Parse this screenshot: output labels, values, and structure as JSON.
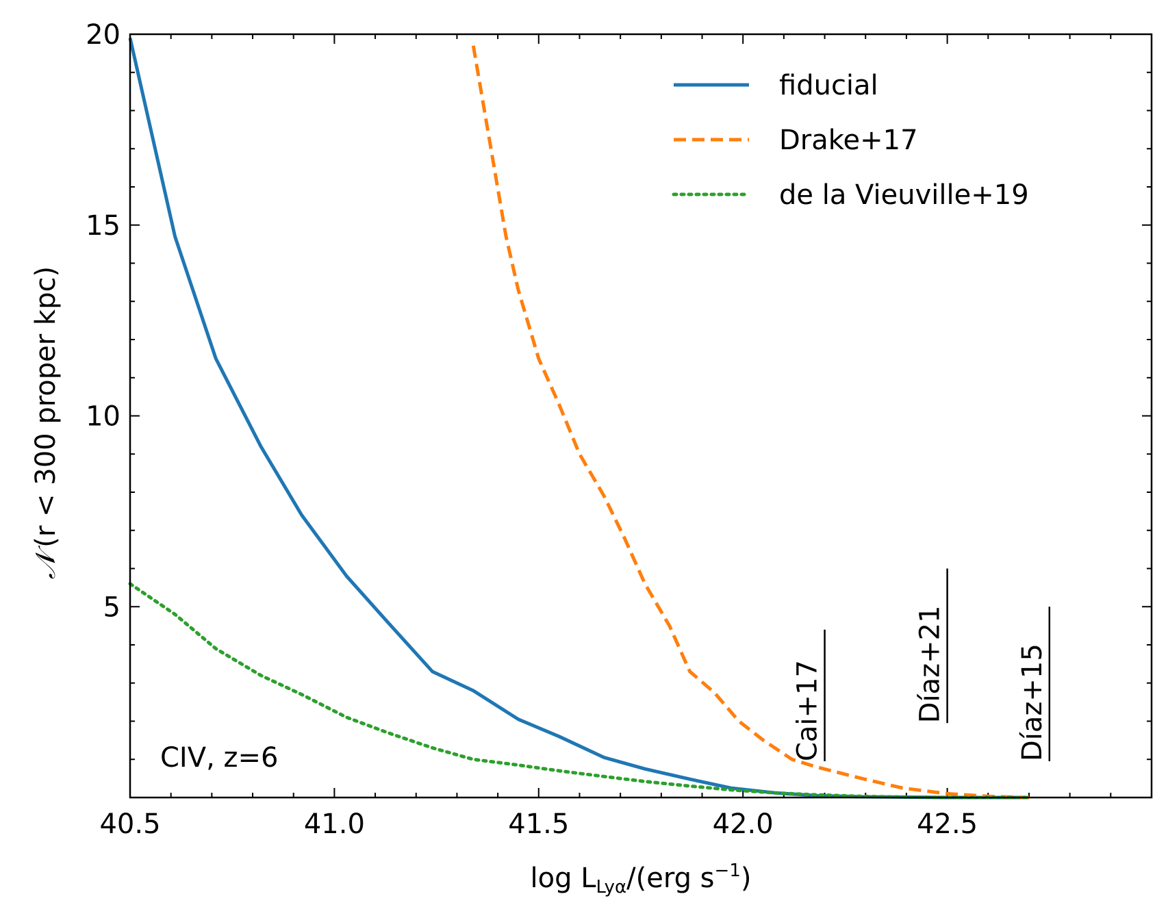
{
  "chart_data": {
    "type": "line",
    "title": "",
    "xlabel": {
      "prefix": "log L",
      "subscript": "Lyα",
      "unit_pre": "/(erg s",
      "superscript": "−1",
      "unit_post": ")"
    },
    "ylabel": {
      "symbol": "𝒩",
      "text": "(r < 300 proper kpc)"
    },
    "xlim": [
      40.5,
      43.0
    ],
    "ylim": [
      0,
      20
    ],
    "xticks": [
      40.5,
      41.0,
      41.5,
      42.0,
      42.5
    ],
    "xtick_labels": [
      "40.5",
      "41.0",
      "41.5",
      "42.0",
      "42.5"
    ],
    "yticks": [
      5,
      10,
      15,
      20
    ],
    "ytick_labels": [
      "5",
      "10",
      "15",
      "20"
    ],
    "annotation": "CIV, z=6",
    "legend_position": "top-right",
    "series": [
      {
        "name": "fiducial",
        "style": "solid",
        "color": "#1f77b4",
        "x": [
          40.5,
          40.61,
          40.71,
          40.82,
          40.92,
          41.03,
          41.13,
          41.24,
          41.34,
          41.45,
          41.55,
          41.66,
          41.76,
          41.87,
          41.97,
          42.08,
          42.18,
          42.29,
          42.39,
          42.5,
          42.6,
          42.7
        ],
        "y": [
          19.9,
          14.7,
          11.5,
          9.2,
          7.4,
          5.8,
          4.6,
          3.3,
          2.8,
          2.05,
          1.6,
          1.05,
          0.75,
          0.48,
          0.25,
          0.12,
          0.05,
          0.02,
          0.01,
          0.0,
          0.0,
          0.0
        ]
      },
      {
        "name": "Drake+17",
        "style": "dashed",
        "color": "#ff7f0e",
        "x": [
          41.34,
          41.38,
          41.42,
          41.45,
          41.5,
          41.55,
          41.6,
          41.66,
          41.71,
          41.76,
          41.82,
          41.87,
          41.93,
          41.99,
          42.05,
          42.12,
          42.18,
          42.29,
          42.39,
          42.5,
          42.6,
          42.7
        ],
        "y": [
          19.7,
          17.2,
          14.7,
          13.3,
          11.5,
          10.3,
          9.0,
          7.9,
          6.8,
          5.6,
          4.5,
          3.3,
          2.75,
          2.0,
          1.5,
          1.0,
          0.8,
          0.5,
          0.25,
          0.1,
          0.03,
          0.0
        ]
      },
      {
        "name": "de la Vieuville+19",
        "style": "dotted",
        "color": "#2ca02c",
        "x": [
          40.5,
          40.61,
          40.71,
          40.82,
          40.92,
          41.03,
          41.13,
          41.24,
          41.34,
          41.45,
          41.55,
          41.66,
          41.76,
          41.87,
          41.97,
          42.08,
          42.18,
          42.29,
          42.39,
          42.5,
          42.6,
          42.7
        ],
        "y": [
          5.6,
          4.8,
          3.9,
          3.2,
          2.7,
          2.1,
          1.7,
          1.3,
          1.0,
          0.85,
          0.7,
          0.55,
          0.42,
          0.3,
          0.2,
          0.12,
          0.07,
          0.03,
          0.015,
          0.0,
          0.0,
          0.0
        ]
      }
    ],
    "reference_markers": [
      {
        "label": "Cai+17",
        "x": 42.2,
        "y_low": 0.95,
        "y_high": 4.4
      },
      {
        "label": "Díaz+21",
        "x": 42.5,
        "y_low": 1.95,
        "y_high": 6.0
      },
      {
        "label": "Díaz+15",
        "x": 42.75,
        "y_low": 0.95,
        "y_high": 5.0
      }
    ]
  }
}
